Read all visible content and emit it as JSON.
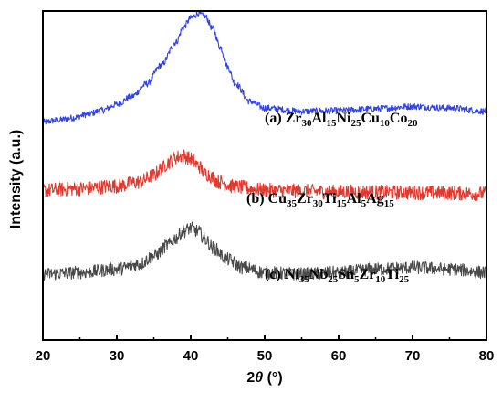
{
  "chart_data": {
    "type": "line",
    "xlabel_parts": [
      {
        "text": "2",
        "italic": false
      },
      {
        "text": "θ",
        "italic": true
      },
      {
        "text": " (°)",
        "italic": false
      }
    ],
    "ylabel": "Intensity (a.u.)",
    "xlim": [
      20,
      80
    ],
    "xticks": [
      20,
      30,
      40,
      50,
      60,
      70,
      80
    ],
    "ylim": [
      0,
      10
    ],
    "yticks_shown": false,
    "grid": false,
    "series": [
      {
        "name": "(a) Zr30Al15Ni25Cu10Co20",
        "label_parts": [
          {
            "t": "(a) Zr"
          },
          {
            "t": "30",
            "sub": true
          },
          {
            "t": "Al"
          },
          {
            "t": "15",
            "sub": true
          },
          {
            "t": "Ni"
          },
          {
            "t": "25",
            "sub": true
          },
          {
            "t": "Cu"
          },
          {
            "t": "10",
            "sub": true
          },
          {
            "t": "Co"
          },
          {
            "t": "20",
            "sub": true
          }
        ],
        "color": "#3344dd",
        "points": [
          [
            20,
            6.62
          ],
          [
            22,
            6.68
          ],
          [
            24,
            6.75
          ],
          [
            26,
            6.86
          ],
          [
            28,
            6.98
          ],
          [
            30,
            7.16
          ],
          [
            32,
            7.4
          ],
          [
            34,
            7.78
          ],
          [
            36,
            8.35
          ],
          [
            38,
            9.05
          ],
          [
            39,
            9.5
          ],
          [
            40,
            9.78
          ],
          [
            41,
            9.92
          ],
          [
            42,
            9.82
          ],
          [
            43,
            9.45
          ],
          [
            44,
            8.9
          ],
          [
            45,
            8.3
          ],
          [
            46,
            7.8
          ],
          [
            48,
            7.25
          ],
          [
            50,
            7.05
          ],
          [
            55,
            6.95
          ],
          [
            60,
            6.97
          ],
          [
            65,
            7.03
          ],
          [
            70,
            7.1
          ],
          [
            75,
            7.05
          ],
          [
            80,
            6.95
          ]
        ]
      },
      {
        "name": "(b) Cu35Zr30Ti15Al5Ag15",
        "label_parts": [
          {
            "t": "(b) Cu"
          },
          {
            "t": "35",
            "sub": true
          },
          {
            "t": "Zr"
          },
          {
            "t": "30",
            "sub": true
          },
          {
            "t": "Ti"
          },
          {
            "t": "15",
            "sub": true
          },
          {
            "t": "Al"
          },
          {
            "t": "5",
            "sub": true
          },
          {
            "t": "Ag"
          },
          {
            "t": "15",
            "sub": true
          }
        ],
        "color": "#e03a30",
        "points": [
          [
            20,
            4.55
          ],
          [
            25,
            4.6
          ],
          [
            30,
            4.68
          ],
          [
            33,
            4.8
          ],
          [
            35,
            5.0
          ],
          [
            36,
            5.2
          ],
          [
            37,
            5.4
          ],
          [
            38,
            5.55
          ],
          [
            39,
            5.6
          ],
          [
            40,
            5.5
          ],
          [
            41,
            5.3
          ],
          [
            42,
            5.05
          ],
          [
            44,
            4.8
          ],
          [
            46,
            4.65
          ],
          [
            50,
            4.55
          ],
          [
            60,
            4.5
          ],
          [
            70,
            4.48
          ],
          [
            80,
            4.45
          ]
        ]
      },
      {
        "name": "(c) Ni35Nb25Sn5Zr10Ti25",
        "label_parts": [
          {
            "t": "(c) Ni"
          },
          {
            "t": "35",
            "sub": true
          },
          {
            "t": "Nb"
          },
          {
            "t": "25",
            "sub": true
          },
          {
            "t": "Sn"
          },
          {
            "t": "5",
            "sub": true
          },
          {
            "t": "Zr"
          },
          {
            "t": "10",
            "sub": true
          },
          {
            "t": "Ti"
          },
          {
            "t": "25",
            "sub": true
          }
        ],
        "color": "#4a4a4a",
        "points": [
          [
            20,
            2.0
          ],
          [
            25,
            2.05
          ],
          [
            30,
            2.15
          ],
          [
            33,
            2.3
          ],
          [
            35,
            2.55
          ],
          [
            37,
            2.9
          ],
          [
            38,
            3.1
          ],
          [
            39,
            3.3
          ],
          [
            40,
            3.4
          ],
          [
            41,
            3.3
          ],
          [
            42,
            3.05
          ],
          [
            43,
            2.8
          ],
          [
            45,
            2.45
          ],
          [
            47,
            2.2
          ],
          [
            50,
            2.05
          ],
          [
            55,
            2.0
          ],
          [
            60,
            2.05
          ],
          [
            65,
            2.15
          ],
          [
            70,
            2.2
          ],
          [
            75,
            2.15
          ],
          [
            80,
            2.05
          ]
        ]
      }
    ]
  }
}
